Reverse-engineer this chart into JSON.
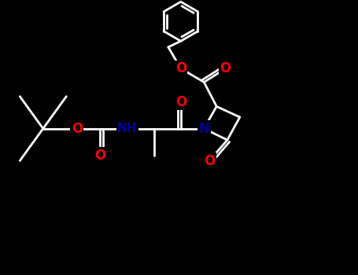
{
  "bg": "#000000",
  "lc": "#ffffff",
  "oc": "#ff0000",
  "nc": "#000099",
  "lw": 2.0,
  "figsize": [
    4.55,
    3.5
  ],
  "dpi": 100,
  "xlim": [
    0,
    10
  ],
  "ylim": [
    0,
    7.7
  ]
}
